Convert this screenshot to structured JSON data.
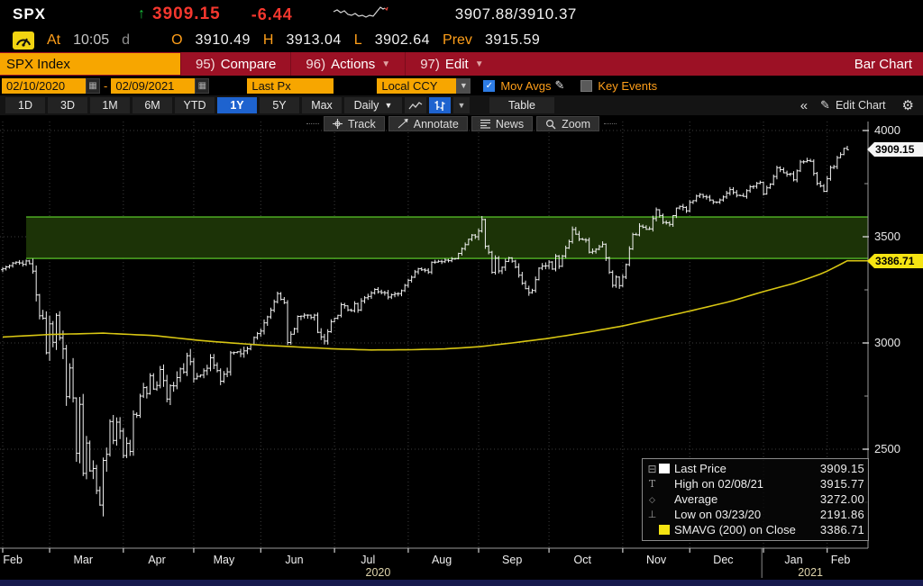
{
  "header": {
    "ticker": "SPX",
    "up_arrow": "↑",
    "last": "3909.15",
    "change": "-6.44",
    "bid_ask": "3907.88/3910.37",
    "at_label": "At",
    "time": "10:05",
    "session": "d",
    "o_label": "O",
    "o_val": "3910.49",
    "h_label": "H",
    "h_val": "3913.04",
    "l_label": "L",
    "l_val": "3902.64",
    "prev_label": "Prev",
    "prev_val": "3915.59"
  },
  "menubar": {
    "security": "SPX Index",
    "compare_num": "95)",
    "compare": "Compare",
    "actions_num": "96)",
    "actions": "Actions",
    "edit_num": "97)",
    "edit": "Edit",
    "right_label": "Bar Chart"
  },
  "controls": {
    "date_from": "02/10/2020",
    "dash": "-",
    "date_to": "02/09/2021",
    "price_field": "Last Px",
    "currency": "Local CCY",
    "mov_avgs": "Mov Avgs",
    "key_events": "Key Events"
  },
  "periods": {
    "t1": "1D",
    "t2": "3D",
    "t3": "1M",
    "t4": "6M",
    "t5": "YTD",
    "t6": "1Y",
    "t7": "5Y",
    "t8": "Max",
    "freq": "Daily",
    "freq_arrow": "▼",
    "table": "Table",
    "collapse": "«",
    "edit_chart": "Edit Chart"
  },
  "chart_toolbar": {
    "track": "Track",
    "annotate": "Annotate",
    "news": "News",
    "zoom": "Zoom"
  },
  "legend": {
    "rows": [
      {
        "icon": "tree-expander",
        "swatch": "#ffffff",
        "label": "Last Price",
        "value": "3909.15"
      },
      {
        "icon": "high-marker",
        "swatch": "",
        "label": "High on 02/08/21",
        "value": "3915.77"
      },
      {
        "icon": "average-marker",
        "swatch": "",
        "label": "Average",
        "value": "3272.00"
      },
      {
        "icon": "low-marker",
        "swatch": "",
        "label": "Low on 03/23/20",
        "value": "2191.86"
      },
      {
        "icon": "sma-swatch",
        "swatch": "#f5e412",
        "label": "SMAVG (200)  on Close",
        "value": "3386.71"
      }
    ]
  },
  "axis_bubbles": {
    "last": "3909.15",
    "sma": "3386.71"
  },
  "chart_data": {
    "type": "bar",
    "subtype": "ohlc-daily",
    "ticker": "SPX Index",
    "date_range": [
      "02/10/2020",
      "02/09/2021"
    ],
    "ylim_visible": [
      2030,
      4045
    ],
    "y_ticks": [
      4000,
      3500,
      3000,
      2500
    ],
    "y_minor_ticks": [
      3750,
      3250,
      2750,
      2250
    ],
    "last_price": 3909.15,
    "high": {
      "date": "02/08/21",
      "value": 3915.77
    },
    "average": 3272.0,
    "low": {
      "date": "03/23/20",
      "value": 2191.86
    },
    "sma200_close": 3386.71,
    "band": {
      "low": 3398,
      "high": 3593,
      "start_day": 7,
      "fill": "#1c3307",
      "edge": "#49a021"
    },
    "bar_color": "#f2f2f2",
    "sma_color": "#d8c613",
    "trading_days": 253,
    "months": [
      {
        "label": "Feb",
        "tick_day": 0,
        "label_day": 3
      },
      {
        "label": "Mar",
        "tick_day": 14,
        "label_day": 24
      },
      {
        "label": "Apr",
        "tick_day": 36,
        "label_day": 46
      },
      {
        "label": "May",
        "tick_day": 57,
        "label_day": 66
      },
      {
        "label": "Jun",
        "tick_day": 77,
        "label_day": 87
      },
      {
        "label": "Jul",
        "tick_day": 99,
        "label_day": 109
      },
      {
        "label": "Aug",
        "tick_day": 121,
        "label_day": 131
      },
      {
        "label": "Sep",
        "tick_day": 142,
        "label_day": 152
      },
      {
        "label": "Oct",
        "tick_day": 163,
        "label_day": 173
      },
      {
        "label": "Nov",
        "tick_day": 185,
        "label_day": 195
      },
      {
        "label": "Dec",
        "tick_day": 205,
        "label_day": 215
      },
      {
        "label": "Jan",
        "tick_day": 227,
        "label_day": 236
      },
      {
        "label": "Feb",
        "tick_day": 246,
        "label_day": 250
      }
    ],
    "years": [
      {
        "label": "2020",
        "label_day": 112
      },
      {
        "label": "2021",
        "label_day": 241
      }
    ],
    "year_divider_day": 226.5,
    "close_anchors": [
      [
        0,
        3349
      ],
      [
        4,
        3380
      ],
      [
        6,
        3370
      ],
      [
        7,
        3386
      ],
      [
        8,
        3373
      ],
      [
        9,
        3338
      ],
      [
        10,
        3226
      ],
      [
        11,
        3128
      ],
      [
        12,
        3116
      ],
      [
        13,
        2954
      ],
      [
        14,
        3090
      ],
      [
        15,
        3003
      ],
      [
        16,
        3130
      ],
      [
        17,
        3024
      ],
      [
        18,
        2972
      ],
      [
        19,
        2747
      ],
      [
        20,
        2882
      ],
      [
        21,
        2741
      ],
      [
        22,
        2481
      ],
      [
        23,
        2711
      ],
      [
        24,
        2386
      ],
      [
        25,
        2529
      ],
      [
        26,
        2398
      ],
      [
        27,
        2409
      ],
      [
        28,
        2305
      ],
      [
        29,
        2237
      ],
      [
        30,
        2447
      ],
      [
        31,
        2476
      ],
      [
        32,
        2630
      ],
      [
        33,
        2541
      ],
      [
        34,
        2627
      ],
      [
        35,
        2585
      ],
      [
        36,
        2470
      ],
      [
        37,
        2527
      ],
      [
        38,
        2489
      ],
      [
        39,
        2664
      ],
      [
        40,
        2659
      ],
      [
        41,
        2750
      ],
      [
        42,
        2790
      ],
      [
        43,
        2762
      ],
      [
        44,
        2846
      ],
      [
        45,
        2783
      ],
      [
        46,
        2800
      ],
      [
        47,
        2875
      ],
      [
        48,
        2823
      ],
      [
        49,
        2736
      ],
      [
        50,
        2799
      ],
      [
        51,
        2798
      ],
      [
        52,
        2837
      ],
      [
        53,
        2878
      ],
      [
        54,
        2863
      ],
      [
        55,
        2940
      ],
      [
        56,
        2912
      ],
      [
        57,
        2831
      ],
      [
        58,
        2843
      ],
      [
        61,
        2881
      ],
      [
        62,
        2930
      ],
      [
        64,
        2870
      ],
      [
        65,
        2820
      ],
      [
        66,
        2853
      ],
      [
        67,
        2864
      ],
      [
        68,
        2954
      ],
      [
        71,
        2949
      ],
      [
        74,
        2992
      ],
      [
        76,
        3044
      ],
      [
        77,
        3056
      ],
      [
        79,
        3123
      ],
      [
        81,
        3194
      ],
      [
        82,
        3232
      ],
      [
        84,
        3190
      ],
      [
        85,
        3002
      ],
      [
        86,
        3041
      ],
      [
        87,
        3067
      ],
      [
        88,
        3125
      ],
      [
        93,
        3131
      ],
      [
        94,
        3050
      ],
      [
        96,
        3009
      ],
      [
        97,
        3053
      ],
      [
        98,
        3100
      ],
      [
        99,
        3116
      ],
      [
        100,
        3130
      ],
      [
        101,
        3180
      ],
      [
        104,
        3152
      ],
      [
        105,
        3185
      ],
      [
        106,
        3155
      ],
      [
        107,
        3198
      ],
      [
        111,
        3252
      ],
      [
        114,
        3236
      ],
      [
        115,
        3216
      ],
      [
        119,
        3246
      ],
      [
        120,
        3271
      ],
      [
        121,
        3295
      ],
      [
        124,
        3349
      ],
      [
        127,
        3334
      ],
      [
        128,
        3380
      ],
      [
        132,
        3390
      ],
      [
        135,
        3397
      ],
      [
        137,
        3444
      ],
      [
        140,
        3508
      ],
      [
        141,
        3500
      ],
      [
        142,
        3527
      ],
      [
        143,
        3581
      ],
      [
        144,
        3455
      ],
      [
        145,
        3427
      ],
      [
        146,
        3332
      ],
      [
        147,
        3399
      ],
      [
        148,
        3339
      ],
      [
        150,
        3384
      ],
      [
        151,
        3401
      ],
      [
        152,
        3385
      ],
      [
        153,
        3357
      ],
      [
        154,
        3319
      ],
      [
        155,
        3281
      ],
      [
        157,
        3237
      ],
      [
        158,
        3247
      ],
      [
        159,
        3298
      ],
      [
        160,
        3352
      ],
      [
        162,
        3363
      ],
      [
        163,
        3381
      ],
      [
        164,
        3348
      ],
      [
        165,
        3409
      ],
      [
        166,
        3361
      ],
      [
        168,
        3447
      ],
      [
        169,
        3477
      ],
      [
        170,
        3534
      ],
      [
        171,
        3512
      ],
      [
        172,
        3489
      ],
      [
        174,
        3484
      ],
      [
        175,
        3427
      ],
      [
        178,
        3453
      ],
      [
        179,
        3465
      ],
      [
        180,
        3401
      ],
      [
        182,
        3271
      ],
      [
        183,
        3310
      ],
      [
        184,
        3270
      ],
      [
        185,
        3310
      ],
      [
        186,
        3369
      ],
      [
        187,
        3443
      ],
      [
        188,
        3510
      ],
      [
        189,
        3509
      ],
      [
        190,
        3550
      ],
      [
        191,
        3545
      ],
      [
        193,
        3537
      ],
      [
        194,
        3585
      ],
      [
        195,
        3627
      ],
      [
        197,
        3568
      ],
      [
        199,
        3558
      ],
      [
        201,
        3635
      ],
      [
        203,
        3638
      ],
      [
        204,
        3622
      ],
      [
        205,
        3662
      ],
      [
        208,
        3699
      ],
      [
        211,
        3673
      ],
      [
        213,
        3663
      ],
      [
        217,
        3722
      ],
      [
        219,
        3695
      ],
      [
        221,
        3690
      ],
      [
        223,
        3735
      ],
      [
        226,
        3756
      ],
      [
        227,
        3701
      ],
      [
        229,
        3748
      ],
      [
        231,
        3825
      ],
      [
        233,
        3801
      ],
      [
        235,
        3796
      ],
      [
        236,
        3768
      ],
      [
        238,
        3852
      ],
      [
        239,
        3853
      ],
      [
        241,
        3855
      ],
      [
        243,
        3751
      ],
      [
        245,
        3714
      ],
      [
        246,
        3773
      ],
      [
        247,
        3826
      ],
      [
        248,
        3830
      ],
      [
        249,
        3872
      ],
      [
        250,
        3887
      ],
      [
        251,
        3916
      ],
      [
        252,
        3909.15
      ]
    ],
    "sma_anchors": [
      [
        0,
        3028
      ],
      [
        14,
        3040
      ],
      [
        30,
        3046
      ],
      [
        45,
        3035
      ],
      [
        60,
        3010
      ],
      [
        77,
        2990
      ],
      [
        99,
        2972
      ],
      [
        110,
        2967
      ],
      [
        121,
        2968
      ],
      [
        132,
        2972
      ],
      [
        142,
        2982
      ],
      [
        152,
        3000
      ],
      [
        163,
        3022
      ],
      [
        175,
        3052
      ],
      [
        185,
        3080
      ],
      [
        195,
        3115
      ],
      [
        205,
        3150
      ],
      [
        217,
        3195
      ],
      [
        227,
        3242
      ],
      [
        236,
        3280
      ],
      [
        245,
        3330
      ],
      [
        252,
        3386.71
      ]
    ],
    "volatility_segments": [
      [
        0,
        22
      ],
      [
        9,
        70
      ],
      [
        14,
        115
      ],
      [
        36,
        68
      ],
      [
        57,
        42
      ],
      [
        77,
        40
      ],
      [
        99,
        26
      ],
      [
        121,
        22
      ],
      [
        142,
        36
      ],
      [
        163,
        30
      ],
      [
        185,
        30
      ],
      [
        205,
        22
      ],
      [
        227,
        26
      ],
      [
        246,
        24
      ]
    ]
  }
}
